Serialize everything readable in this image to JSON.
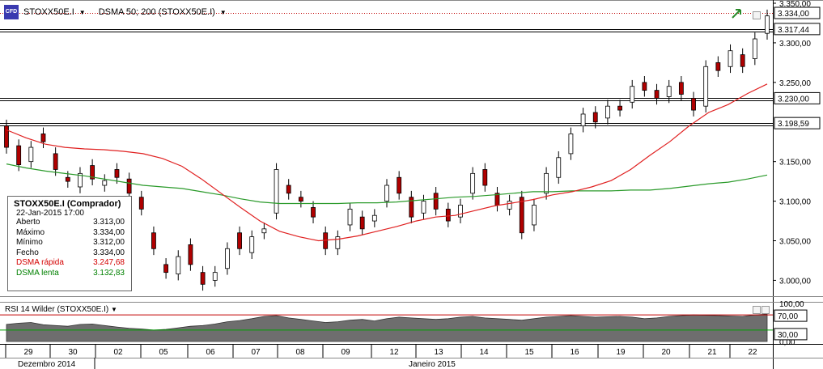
{
  "header": {
    "symbol": "STOXX50E.I",
    "indicator": "DSMA 50; 200 (STOXX50E.I)",
    "logo_text": "CFD"
  },
  "price_axis": {
    "ticks": [
      "3.350,00",
      "3.300,00",
      "3.250,00",
      "3.150,00",
      "3.100,00",
      "3.050,00",
      "3.000,00"
    ],
    "boxed_levels": [
      "3.334,00",
      "3.317,44",
      "3.230,00",
      "3.198,59"
    ]
  },
  "info_box": {
    "title": "STOXX50E.I (Comprador)",
    "date": "22-Jan-2015 17:00",
    "rows": [
      {
        "label": "Aberto",
        "value": "3.313,00",
        "color": "#000000"
      },
      {
        "label": "Máximo",
        "value": "3.334,00",
        "color": "#000000"
      },
      {
        "label": "Mínimo",
        "value": "3.312,00",
        "color": "#000000"
      },
      {
        "label": "Fecho",
        "value": "3.334,00",
        "color": "#000000"
      },
      {
        "label": "DSMA rápida",
        "value": "3.247,68",
        "color": "#d40000"
      },
      {
        "label": "DSMA lenta",
        "value": "3.132,83",
        "color": "#008000"
      }
    ]
  },
  "rsi": {
    "label": "RSI 14 Wilder (STOXX50E.I)",
    "ticks": [
      "100,00",
      "0,00"
    ],
    "boxed_levels": [
      "70,00",
      "30,00"
    ]
  },
  "time_axis": {
    "days": [
      "29",
      "30",
      "02",
      "05",
      "06",
      "07",
      "08",
      "09",
      "12",
      "13",
      "14",
      "15",
      "16",
      "19",
      "20",
      "21",
      "22"
    ],
    "months": [
      "Dezembro 2014",
      "Janeiro 2015"
    ]
  },
  "colors": {
    "up": "#ffffff",
    "down": "#b00000",
    "fast_ma": "#e02020",
    "slow_ma": "#2a9a2a",
    "rsi_fill": "#6e6e6e",
    "rsi_70": "#c00000",
    "rsi_30": "#00a000"
  },
  "chart_data": {
    "type": "candlestick",
    "ylim": [
      2980,
      3350
    ],
    "fast_ma": [
      3190,
      3180,
      3172,
      3168,
      3166,
      3165,
      3163,
      3160,
      3154,
      3144,
      3128,
      3110,
      3092,
      3075,
      3062,
      3055,
      3050,
      3052,
      3056,
      3062,
      3068,
      3075,
      3080,
      3082,
      3088,
      3094,
      3098,
      3102,
      3108,
      3112,
      3118,
      3126,
      3140,
      3158,
      3175,
      3195,
      3212,
      3222,
      3236,
      3248
    ],
    "slow_ma": [
      3147,
      3142,
      3138,
      3135,
      3132,
      3128,
      3124,
      3120,
      3118,
      3116,
      3112,
      3108,
      3103,
      3099,
      3097,
      3097,
      3097,
      3097,
      3098,
      3098,
      3099,
      3101,
      3103,
      3105,
      3106,
      3108,
      3110,
      3112,
      3112,
      3113,
      3113,
      3113,
      3114,
      3114,
      3116,
      3119,
      3122,
      3124,
      3128,
      3133
    ],
    "candles": [
      [
        3195,
        3168
      ],
      [
        3170,
        3146
      ],
      [
        3150,
        3168
      ],
      [
        3185,
        3175
      ],
      [
        3160,
        3140
      ],
      [
        3130,
        3125
      ],
      [
        3118,
        3135
      ],
      [
        3145,
        3128
      ],
      [
        3120,
        3126
      ],
      [
        3140,
        3130
      ],
      [
        3128,
        3110
      ],
      [
        3105,
        3090
      ],
      [
        3060,
        3040
      ],
      [
        3020,
        3010
      ],
      [
        3008,
        3030
      ],
      [
        3045,
        3020
      ],
      [
        3010,
        2995
      ],
      [
        3000,
        3010
      ],
      [
        3015,
        3040
      ],
      [
        3060,
        3040
      ],
      [
        3035,
        3055
      ],
      [
        3060,
        3065
      ],
      [
        3085,
        3140
      ],
      [
        3120,
        3110
      ],
      [
        3105,
        3100
      ],
      [
        3092,
        3080
      ],
      [
        3060,
        3040
      ],
      [
        3040,
        3055
      ],
      [
        3070,
        3090
      ],
      [
        3080,
        3065
      ],
      [
        3075,
        3082
      ],
      [
        3100,
        3120
      ],
      [
        3130,
        3110
      ],
      [
        3105,
        3080
      ],
      [
        3085,
        3100
      ],
      [
        3110,
        3090
      ],
      [
        3090,
        3075
      ],
      [
        3080,
        3095
      ],
      [
        3110,
        3135
      ],
      [
        3140,
        3120
      ],
      [
        3110,
        3095
      ],
      [
        3090,
        3100
      ],
      [
        3105,
        3060
      ],
      [
        3070,
        3095
      ],
      [
        3110,
        3135
      ],
      [
        3130,
        3155
      ],
      [
        3160,
        3185
      ],
      [
        3195,
        3210
      ],
      [
        3212,
        3200
      ],
      [
        3205,
        3220
      ],
      [
        3220,
        3215
      ],
      [
        3225,
        3245
      ],
      [
        3250,
        3240
      ],
      [
        3240,
        3230
      ],
      [
        3232,
        3245
      ],
      [
        3250,
        3235
      ],
      [
        3230,
        3215
      ],
      [
        3220,
        3270
      ],
      [
        3275,
        3265
      ],
      [
        3270,
        3290
      ],
      [
        3285,
        3270
      ],
      [
        3280,
        3305
      ],
      [
        3312,
        3334
      ]
    ],
    "rsi": [
      45,
      48,
      50,
      44,
      42,
      40,
      45,
      46,
      42,
      38,
      35,
      33,
      30,
      32,
      36,
      40,
      42,
      46,
      52,
      55,
      60,
      66,
      68,
      62,
      58,
      54,
      50,
      52,
      56,
      58,
      54,
      60,
      64,
      62,
      60,
      58,
      60,
      64,
      66,
      62,
      60,
      58,
      56,
      60,
      64,
      66,
      68,
      66,
      64,
      65,
      66,
      64,
      60,
      62,
      66,
      68,
      70,
      69,
      68,
      67,
      66,
      70,
      72
    ]
  }
}
